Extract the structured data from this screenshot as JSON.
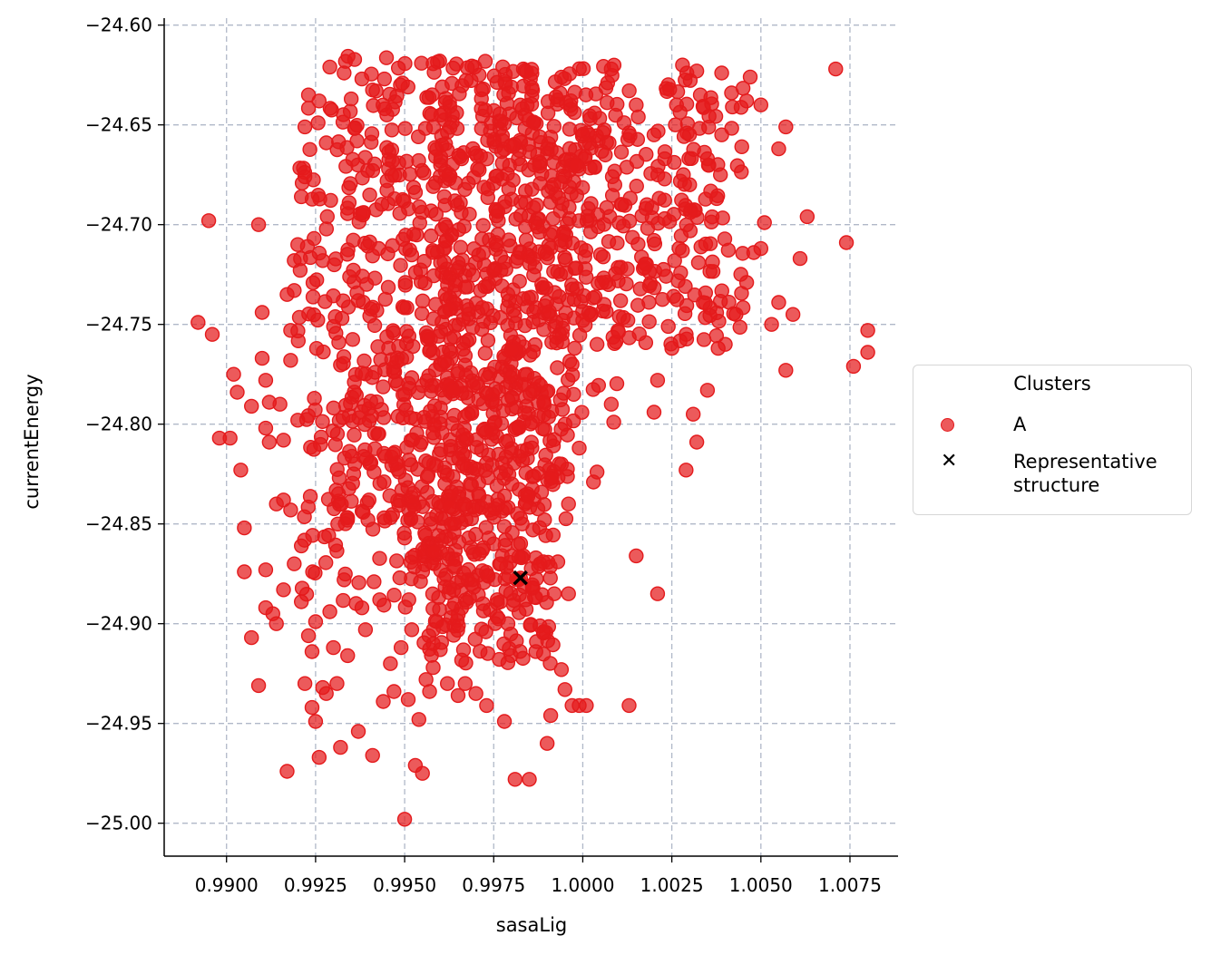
{
  "chart_data": {
    "type": "scatter",
    "title": "",
    "xlabel": "sasaLig",
    "ylabel": "currentEnergy",
    "xlim": [
      0.98825,
      1.00885
    ],
    "ylim": [
      -25.0165,
      -24.5965
    ],
    "xticks": [
      0.99,
      0.9925,
      0.995,
      0.9975,
      1.0,
      1.0025,
      1.005,
      1.0075
    ],
    "xtick_labels": [
      "0.9900",
      "0.9925",
      "0.9950",
      "0.9975",
      "1.0000",
      "1.0025",
      "1.0050",
      "1.0075"
    ],
    "yticks": [
      -24.6,
      -24.65,
      -24.7,
      -24.75,
      -24.8,
      -24.85,
      -24.9,
      -24.95,
      -25.0
    ],
    "ytick_labels": [
      "−24.60",
      "−24.65",
      "−24.70",
      "−24.75",
      "−24.80",
      "−24.85",
      "−24.90",
      "−24.95",
      "−25.00"
    ],
    "grid": true,
    "legend_placement": "right-outside",
    "legend_title": "Clusters",
    "colors": {
      "cluster_A": "#e41a1c",
      "representative": "#000000",
      "grid": "#b0b8c8"
    },
    "series": [
      {
        "name": "A",
        "marker": "circle",
        "points": [
          [
            0.9895,
            -24.698
          ],
          [
            0.9892,
            -24.749
          ],
          [
            0.9896,
            -24.755
          ],
          [
            0.9898,
            -24.807
          ],
          [
            0.9901,
            -24.807
          ],
          [
            0.9902,
            -24.775
          ],
          [
            0.9903,
            -24.784
          ],
          [
            0.9904,
            -24.823
          ],
          [
            0.9905,
            -24.852
          ],
          [
            0.9905,
            -24.874
          ],
          [
            0.9907,
            -24.791
          ],
          [
            0.9907,
            -24.907
          ],
          [
            0.9909,
            -24.931
          ],
          [
            0.9909,
            -24.7
          ],
          [
            0.991,
            -24.744
          ],
          [
            0.991,
            -24.767
          ],
          [
            0.9911,
            -24.873
          ],
          [
            0.9911,
            -24.892
          ],
          [
            0.9911,
            -24.778
          ],
          [
            0.9911,
            -24.802
          ],
          [
            0.9912,
            -24.809
          ],
          [
            0.9912,
            -24.789
          ],
          [
            0.9913,
            -24.895
          ],
          [
            0.9914,
            -24.84
          ],
          [
            0.9914,
            -24.9
          ],
          [
            0.9915,
            -24.79
          ],
          [
            0.9916,
            -24.808
          ],
          [
            0.9916,
            -24.838
          ],
          [
            0.9916,
            -24.883
          ],
          [
            0.9917,
            -24.735
          ],
          [
            0.9917,
            -24.974
          ],
          [
            0.9918,
            -24.753
          ],
          [
            0.9918,
            -24.843
          ],
          [
            0.9918,
            -24.768
          ],
          [
            0.9919,
            -24.733
          ],
          [
            0.9919,
            -24.718
          ],
          [
            0.9919,
            -24.87
          ],
          [
            0.992,
            -24.71
          ],
          [
            0.992,
            -24.798
          ],
          [
            0.9921,
            -24.686
          ],
          [
            0.9921,
            -24.861
          ],
          [
            0.9921,
            -24.889
          ],
          [
            0.9922,
            -24.93
          ],
          [
            0.9922,
            -24.676
          ],
          [
            0.9922,
            -24.651
          ],
          [
            0.9923,
            -24.635
          ],
          [
            0.9923,
            -24.906
          ],
          [
            0.9924,
            -24.914
          ],
          [
            0.9924,
            -24.942
          ],
          [
            0.9925,
            -24.899
          ],
          [
            0.9925,
            -24.949
          ],
          [
            0.9926,
            -24.967
          ],
          [
            0.9926,
            -24.638
          ],
          [
            0.9927,
            -24.718
          ],
          [
            0.9927,
            -24.932
          ],
          [
            0.9928,
            -24.659
          ],
          [
            0.9928,
            -24.935
          ],
          [
            0.9929,
            -24.621
          ],
          [
            0.9929,
            -24.894
          ],
          [
            0.993,
            -24.912
          ],
          [
            0.9931,
            -24.93
          ],
          [
            0.9932,
            -24.962
          ],
          [
            0.9933,
            -24.624
          ],
          [
            0.9933,
            -24.878
          ],
          [
            0.9934,
            -24.916
          ],
          [
            0.9935,
            -24.637
          ],
          [
            0.9936,
            -24.82
          ],
          [
            0.9937,
            -24.954
          ],
          [
            0.9938,
            -24.627
          ],
          [
            0.9939,
            -24.903
          ],
          [
            0.994,
            -24.838
          ],
          [
            0.9941,
            -24.966
          ],
          [
            0.9942,
            -24.633
          ],
          [
            0.9943,
            -24.888
          ],
          [
            0.9944,
            -24.939
          ],
          [
            0.9945,
            -24.645
          ],
          [
            0.9946,
            -24.92
          ],
          [
            0.9947,
            -24.934
          ],
          [
            0.9948,
            -24.78
          ],
          [
            0.9949,
            -24.912
          ],
          [
            0.995,
            -24.998
          ],
          [
            0.9951,
            -24.938
          ],
          [
            0.9952,
            -24.903
          ],
          [
            0.9953,
            -24.971
          ],
          [
            0.9954,
            -24.948
          ],
          [
            0.9955,
            -24.975
          ],
          [
            0.9956,
            -24.928
          ],
          [
            0.9957,
            -24.934
          ],
          [
            0.9958,
            -24.922
          ],
          [
            0.9959,
            -24.899
          ],
          [
            0.996,
            -24.913
          ],
          [
            0.9962,
            -24.93
          ],
          [
            0.9963,
            -24.897
          ],
          [
            0.9964,
            -24.89
          ],
          [
            0.9965,
            -24.936
          ],
          [
            0.9966,
            -24.878
          ],
          [
            0.9967,
            -24.93
          ],
          [
            0.9968,
            -24.857
          ],
          [
            0.9969,
            -24.878
          ],
          [
            0.997,
            -24.935
          ],
          [
            0.9971,
            -24.865
          ],
          [
            0.9972,
            -24.89
          ],
          [
            0.9973,
            -24.941
          ],
          [
            0.9974,
            -24.893
          ],
          [
            0.9975,
            -24.86
          ],
          [
            0.9976,
            -24.888
          ],
          [
            0.9977,
            -24.87
          ],
          [
            0.9978,
            -24.949
          ],
          [
            0.9979,
            -24.9
          ],
          [
            0.998,
            -24.866
          ],
          [
            0.9981,
            -24.978
          ],
          [
            0.9982,
            -24.878
          ],
          [
            0.9983,
            -24.85
          ],
          [
            0.9984,
            -24.888
          ],
          [
            0.9985,
            -24.978
          ],
          [
            0.9986,
            -24.853
          ],
          [
            0.9987,
            -24.909
          ],
          [
            0.9988,
            -24.87
          ],
          [
            0.9989,
            -24.904
          ],
          [
            0.999,
            -24.96
          ],
          [
            0.9991,
            -24.946
          ],
          [
            0.9992,
            -24.885
          ],
          [
            0.9993,
            -24.869
          ],
          [
            0.9994,
            -24.923
          ],
          [
            0.9995,
            -24.933
          ],
          [
            0.9996,
            -24.885
          ],
          [
            0.9997,
            -24.941
          ],
          [
            0.9999,
            -24.941
          ],
          [
            1.0001,
            -24.941
          ],
          [
            1.0003,
            -24.829
          ],
          [
            1.0004,
            -24.824
          ],
          [
            1.0008,
            -24.79
          ],
          [
            1.0013,
            -24.941
          ],
          [
            1.0015,
            -24.866
          ],
          [
            1.002,
            -24.794
          ],
          [
            1.0021,
            -24.885
          ],
          [
            1.0021,
            -24.778
          ],
          [
            1.0024,
            -24.751
          ],
          [
            1.0025,
            -24.762
          ],
          [
            1.0029,
            -24.823
          ],
          [
            1.0031,
            -24.795
          ],
          [
            1.0032,
            -24.809
          ],
          [
            1.0035,
            -24.783
          ],
          [
            1.0038,
            -24.762
          ],
          [
            1.004,
            -24.76
          ],
          [
            1.0043,
            -24.745
          ],
          [
            1.0046,
            -24.729
          ],
          [
            1.0048,
            -24.714
          ],
          [
            1.005,
            -24.712
          ],
          [
            1.0051,
            -24.699
          ],
          [
            1.0053,
            -24.75
          ],
          [
            1.0055,
            -24.739
          ],
          [
            1.0057,
            -24.773
          ],
          [
            1.0059,
            -24.745
          ],
          [
            1.0061,
            -24.717
          ],
          [
            1.0063,
            -24.696
          ],
          [
            1.0071,
            -24.622
          ],
          [
            1.0074,
            -24.709
          ],
          [
            1.0076,
            -24.771
          ],
          [
            1.008,
            -24.753
          ],
          [
            1.008,
            -24.764
          ],
          [
            1.0057,
            -24.651
          ],
          [
            1.0055,
            -24.662
          ],
          [
            1.005,
            -24.64
          ],
          [
            1.0047,
            -24.626
          ],
          [
            1.0046,
            -24.638
          ],
          [
            1.0042,
            -24.641
          ],
          [
            1.0039,
            -24.624
          ],
          [
            1.0039,
            -24.655
          ],
          [
            1.0035,
            -24.667
          ],
          [
            1.0033,
            -24.635
          ],
          [
            1.0032,
            -24.623
          ],
          [
            1.003,
            -24.68
          ],
          [
            1.0028,
            -24.62
          ],
          [
            1.0026,
            -24.65
          ],
          [
            1.0023,
            -24.667
          ],
          [
            1.002,
            -24.655
          ],
          [
            1.0018,
            -24.69
          ],
          [
            1.0017,
            -24.722
          ],
          [
            1.0015,
            -24.64
          ],
          [
            1.0013,
            -24.654
          ],
          [
            1.0011,
            -24.69
          ],
          [
            1.0009,
            -24.68
          ],
          [
            1.0008,
            -24.622
          ],
          [
            1.0006,
            -24.74
          ],
          [
            1.0005,
            -24.715
          ],
          [
            1.0004,
            -24.76
          ],
          [
            1.0002,
            -24.698
          ],
          [
            1.0,
            -24.748
          ],
          [
            0.9999,
            -24.812
          ],
          [
            0.9997,
            -24.77
          ],
          [
            0.9996,
            -24.84
          ],
          [
            0.9995,
            -24.8
          ],
          [
            0.9994,
            -24.82
          ]
        ],
        "dense_regions": [
          {
            "x_range": [
              0.993,
              0.9985
            ],
            "y_range": [
              -24.85,
              -24.615
            ]
          },
          {
            "x_range": [
              0.9945,
              0.9998
            ],
            "y_range": [
              -24.88,
              -24.62
            ]
          },
          {
            "x_range": [
              0.996,
              1.001
            ],
            "y_range": [
              -24.8,
              -24.62
            ]
          },
          {
            "x_range": [
              0.9985,
              1.0045
            ],
            "y_range": [
              -24.76,
              -24.62
            ]
          },
          {
            "x_range": [
              0.992,
              0.9965
            ],
            "y_range": [
              -24.9,
              -24.64
            ]
          },
          {
            "x_range": [
              0.9955,
              0.9992
            ],
            "y_range": [
              -24.92,
              -24.78
            ]
          }
        ]
      },
      {
        "name": "Representative\nstructure",
        "marker": "x",
        "points": [
          [
            0.99825,
            -24.877
          ]
        ]
      }
    ]
  }
}
